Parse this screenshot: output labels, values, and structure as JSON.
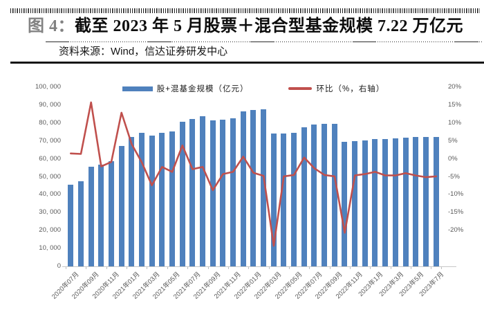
{
  "header": {
    "figure_label": "图 4：",
    "title": "截至 2023 年 5 月股票＋混合型基金规模 7.22 万亿元",
    "source": "资料来源：Wind，信达证券研发中心"
  },
  "chart_data": {
    "type": "bar",
    "title": "股+混基金规模与环比",
    "categories": [
      "2020年07月",
      "2020年08月",
      "2020年09月",
      "2020年10月",
      "2020年11月",
      "2020年12月",
      "2021年01月",
      "2021年02月",
      "2021年03月",
      "2021年04月",
      "2021年05月",
      "2021年06月",
      "2021年07月",
      "2021年08月",
      "2021年09月",
      "2021年10月",
      "2021年11月",
      "2021年12月",
      "2022年01月",
      "2022年02月",
      "2022年03月",
      "2022年04月",
      "2022年05月",
      "2022年06月",
      "2022年07月",
      "2022年08月",
      "2022年09月",
      "2022年10月",
      "2022年11月",
      "2022年12月",
      "2023年1月",
      "2023年2月",
      "2023年3月",
      "2023年4月",
      "2023年5月",
      "2023年6月",
      "2023年7月"
    ],
    "x_tick_labels": [
      "2020年07月",
      "2020年09月",
      "2020年11月",
      "2021年01月",
      "2021年03月",
      "2021年05月",
      "2021年07月",
      "2021年09月",
      "2021年11月",
      "2022年01月",
      "2022年03月",
      "2022年05月",
      "2022年07月",
      "2022年09月",
      "2022年11月",
      "2023年1月",
      "2023年3月",
      "2023年5月",
      "2023年7月"
    ],
    "series": [
      {
        "name": "股+混基金规模（亿元）",
        "type": "bar",
        "axis": "left",
        "color": "#4F81BD",
        "values": [
          45400,
          47700,
          55600,
          56900,
          58800,
          67200,
          72100,
          74400,
          73000,
          74600,
          75400,
          80700,
          82100,
          83900,
          81400,
          81900,
          82800,
          86500,
          87300,
          87500,
          74000,
          74100,
          74400,
          77600,
          79100,
          79400,
          79500,
          69600,
          69800,
          70200,
          71000,
          71200,
          71400,
          72000,
          72200,
          72100,
          72200
        ]
      },
      {
        "name": "环比（%，右轴）",
        "type": "line",
        "axis": "right",
        "color": "#C0504D",
        "values": [
          5.2,
          5.1,
          16.6,
          2.3,
          3.3,
          14.3,
          7.3,
          3.2,
          -1.9,
          2.2,
          1.1,
          7.0,
          1.7,
          2.2,
          -3.0,
          0.6,
          1.1,
          4.5,
          0.9,
          0.2,
          -15.4,
          0.1,
          0.4,
          4.3,
          1.9,
          0.4,
          0.1,
          -12.5,
          0.3,
          0.6,
          1.1,
          0.3,
          0.3,
          0.8,
          0.3,
          -0.1,
          0.1
        ]
      }
    ],
    "left_axis": {
      "min": 0,
      "max": 100000,
      "step": 10000,
      "tick_labels": [
        "100, 000",
        "90, 000",
        "80, 000",
        "70, 000",
        "60, 000",
        "50, 000",
        "40, 000",
        "30, 000",
        "20, 000",
        "10, 000",
        "0"
      ]
    },
    "right_axis": {
      "min": -20,
      "max": 20,
      "step": 5,
      "tick_labels": [
        "20%",
        "15%",
        "10%",
        "5%",
        "0%",
        "-5%",
        "-10%",
        "-15%",
        "-20%"
      ]
    },
    "grid": "off",
    "legend_position": "top"
  }
}
